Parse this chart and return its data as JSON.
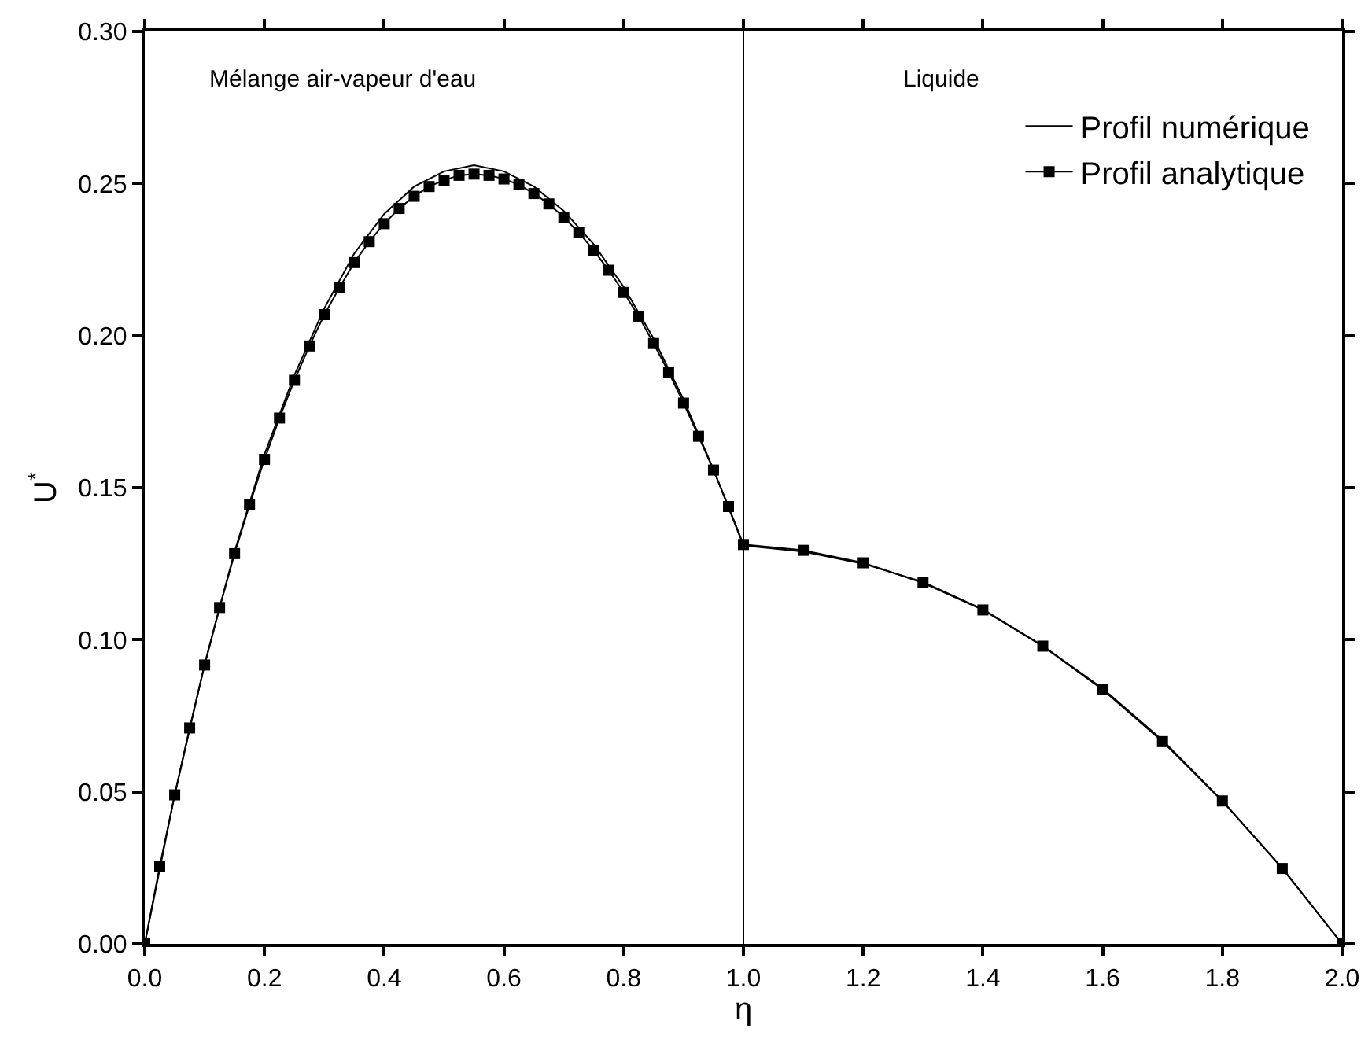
{
  "chart_data": {
    "type": "line",
    "xlabel": "η",
    "ylabel": "U$^{*}$",
    "xlim": [
      0,
      2
    ],
    "ylim": [
      0,
      0.3
    ],
    "xticks": [
      {
        "value": 0,
        "label": "0.0"
      },
      {
        "value": 0.2,
        "label": "0.2"
      },
      {
        "value": 0.4,
        "label": "0.4"
      },
      {
        "value": 0.6,
        "label": "0.6"
      },
      {
        "value": 0.8,
        "label": "0.8"
      },
      {
        "value": 1,
        "label": "1.0"
      },
      {
        "value": 1.2,
        "label": "1.2"
      },
      {
        "value": 1.4,
        "label": "1.4"
      },
      {
        "value": 1.6,
        "label": "1.6"
      },
      {
        "value": 1.8,
        "label": "1.8"
      },
      {
        "value": 2,
        "label": "2.0"
      }
    ],
    "yticks": [
      {
        "value": 0,
        "label": "0.00"
      },
      {
        "value": 0.05,
        "label": "0.05"
      },
      {
        "value": 0.1,
        "label": "0.10"
      },
      {
        "value": 0.15,
        "label": "0.15"
      },
      {
        "value": 0.2,
        "label": "0.20"
      },
      {
        "value": 0.25,
        "label": "0.25"
      },
      {
        "value": 0.3,
        "label": "0.30"
      }
    ],
    "grid": false,
    "legend": "top right",
    "ref_lines": [
      {
        "axis": "x",
        "value": 1,
        "color": "#000000"
      }
    ],
    "annotations": [
      "Mélange air-vapeur d'eau",
      "Liquide"
    ],
    "series": [
      {
        "name": "Profil numérique",
        "color": "#000000",
        "marker": "none",
        "x": [
          0,
          0.05,
          0.1,
          0.15,
          0.2,
          0.25,
          0.3,
          0.35,
          0.4,
          0.45,
          0.5,
          0.55,
          0.6,
          0.65,
          0.7,
          0.75,
          0.8,
          0.85,
          0.9,
          0.95,
          1.0,
          1.1,
          1.2,
          1.3,
          1.4,
          1.5,
          1.6,
          1.7,
          1.8,
          1.9,
          2.0
        ],
        "values": [
          0,
          0.049,
          0.092,
          0.129,
          0.161,
          0.187,
          0.209,
          0.227,
          0.24,
          0.249,
          0.254,
          0.256,
          0.254,
          0.249,
          0.241,
          0.23,
          0.216,
          0.199,
          0.179,
          0.156,
          0.131,
          0.129,
          0.125,
          0.119,
          0.11,
          0.098,
          0.084,
          0.067,
          0.047,
          0.025,
          0
        ]
      },
      {
        "name": "Profil analytique",
        "color": "#000000",
        "marker": "square",
        "x": [
          0,
          0.025,
          0.05,
          0.075,
          0.1,
          0.125,
          0.15,
          0.175,
          0.2,
          0.225,
          0.25,
          0.275,
          0.3,
          0.325,
          0.35,
          0.375,
          0.4,
          0.425,
          0.45,
          0.475,
          0.5,
          0.525,
          0.55,
          0.575,
          0.6,
          0.625,
          0.65,
          0.675,
          0.7,
          0.725,
          0.75,
          0.775,
          0.8,
          0.825,
          0.85,
          0.875,
          0.9,
          0.925,
          0.95,
          0.975,
          1.0,
          1.1,
          1.2,
          1.3,
          1.4,
          1.5,
          1.6,
          1.7,
          1.8,
          1.9,
          2.0
        ],
        "values": [
          0,
          0.0255,
          0.049,
          0.071,
          0.0917,
          0.1106,
          0.1283,
          0.1443,
          0.1593,
          0.1729,
          0.1853,
          0.1966,
          0.2069,
          0.2157,
          0.224,
          0.2309,
          0.2368,
          0.2418,
          0.2458,
          0.249,
          0.2511,
          0.2527,
          0.2531,
          0.2527,
          0.2515,
          0.2496,
          0.2467,
          0.2433,
          0.2389,
          0.2339,
          0.228,
          0.2215,
          0.2142,
          0.2064,
          0.1974,
          0.188,
          0.1778,
          0.1669,
          0.1558,
          0.1438,
          0.1313,
          0.1294,
          0.1253,
          0.1187,
          0.1098,
          0.0979,
          0.0836,
          0.0665,
          0.047,
          0.0248,
          0
        ]
      }
    ]
  }
}
